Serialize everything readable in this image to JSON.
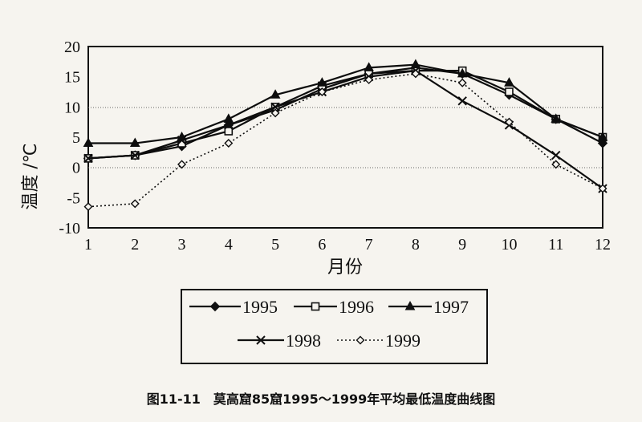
{
  "caption": "图11-11　莫高窟85窟1995～1999年平均最低温度曲线图",
  "chart_data": {
    "type": "line",
    "xlabel": "月份",
    "ylabel": "温度 /℃",
    "x": [
      1,
      2,
      3,
      4,
      5,
      6,
      7,
      8,
      9,
      10,
      11,
      12
    ],
    "xticks": [
      "1",
      "2",
      "3",
      "4",
      "5",
      "6",
      "7",
      "8",
      "9",
      "10",
      "11",
      "12"
    ],
    "yticks": [
      "20",
      "15",
      "10",
      "5",
      "0",
      "-5",
      "-10"
    ],
    "ylim": [
      -10,
      20
    ],
    "grid": "horizontal dotted at 10 and 0",
    "legend_position": "bottom",
    "series": [
      {
        "name": "1995",
        "marker": "diamond-filled",
        "dash": "solid",
        "values": [
          1.5,
          2.0,
          3.5,
          7.0,
          9.5,
          13.0,
          15.5,
          16.5,
          15.5,
          12.0,
          8.0,
          4.0
        ]
      },
      {
        "name": "1996",
        "marker": "square-open",
        "dash": "solid",
        "values": [
          1.5,
          2.0,
          4.0,
          6.0,
          10.0,
          13.5,
          15.5,
          16.0,
          16.0,
          12.5,
          8.0,
          5.0
        ]
      },
      {
        "name": "1997",
        "marker": "triangle-filled",
        "dash": "solid",
        "values": [
          4.0,
          4.0,
          5.0,
          8.0,
          12.0,
          14.0,
          16.5,
          17.0,
          15.5,
          14.0,
          8.0,
          5.0
        ]
      },
      {
        "name": "1998",
        "marker": "x",
        "dash": "solid",
        "values": [
          1.5,
          2.0,
          4.5,
          7.0,
          10.0,
          12.5,
          15.0,
          16.0,
          11.0,
          7.0,
          2.0,
          -3.5
        ]
      },
      {
        "name": "1999",
        "marker": "diamond-open",
        "dash": "dotted",
        "values": [
          -6.5,
          -6.0,
          0.5,
          4.0,
          9.0,
          12.5,
          14.5,
          15.5,
          14.0,
          7.5,
          0.5,
          -3.5
        ]
      }
    ]
  }
}
